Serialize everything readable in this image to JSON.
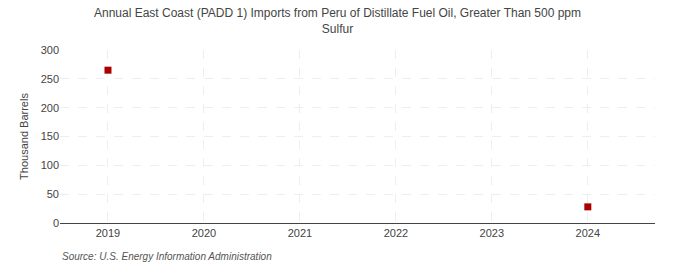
{
  "chart_data": {
    "type": "scatter",
    "title": "Annual East Coast (PADD 1) Imports from Peru of Distillate Fuel Oil, Greater Than 500 ppm\nSulfur",
    "ylabel": "Thousand Barrels",
    "source": "Source: U.S. Energy Information Administration",
    "x": [
      2019,
      2024
    ],
    "values": [
      265,
      28
    ],
    "color": "#aa0000",
    "marker": "square",
    "xlim": [
      2018.5,
      2024.7
    ],
    "xticks": [
      2019,
      2020,
      2021,
      2022,
      2023,
      2024
    ],
    "ylim": [
      0,
      300
    ],
    "yticks": [
      0,
      50,
      100,
      150,
      200,
      250,
      300
    ],
    "grid": true
  }
}
